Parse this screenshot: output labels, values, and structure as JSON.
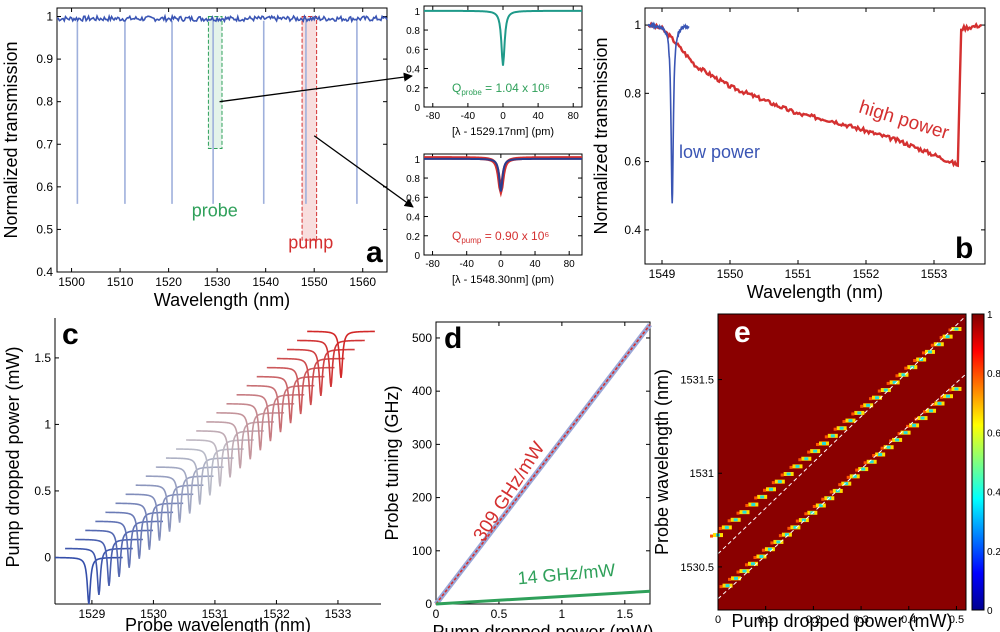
{
  "colors": {
    "blue": "#3a55b4",
    "lightblue": "#9fb0dc",
    "red": "#d43030",
    "green": "#2fa05a",
    "darkred": "#8a0000"
  },
  "chart_data": [
    {
      "panel": "a",
      "type": "line",
      "xlabel": "Wavelength (nm)",
      "ylabel": "Normalized transmission",
      "xlim": [
        1497,
        1565
      ],
      "ylim": [
        0.4,
        1.02
      ],
      "xticks": [
        1500,
        1510,
        1520,
        1530,
        1540,
        1550,
        1560
      ],
      "yticks": [
        0.4,
        0.5,
        0.6,
        0.7,
        0.8,
        0.9,
        1
      ],
      "dips_x": [
        1501.2,
        1511,
        1520.7,
        1529.17,
        1539.6,
        1548.3,
        1558.8
      ],
      "dip_min": 0.56,
      "annotations": [
        "probe",
        "pump"
      ]
    },
    {
      "panel": "a-inset-probe",
      "type": "line",
      "xlabel": "[λ - 1529.17nm] (pm)",
      "xlim": [
        -90,
        90
      ],
      "ylim": [
        0.0,
        1.05
      ],
      "xticks": [
        -80,
        -40,
        0,
        40,
        80
      ],
      "yticks": [
        0,
        0.2,
        0.4,
        0.6,
        0.8,
        1
      ],
      "dip_min": 0.43,
      "q_label": "Q",
      "q_sub": "probe",
      "q_value": " = 1.04 x 10⁶"
    },
    {
      "panel": "a-inset-pump",
      "type": "line",
      "xlabel": "[λ - 1548.30nm] (pm)",
      "xlim": [
        -90,
        95
      ],
      "ylim": [
        0.0,
        1.05
      ],
      "xticks": [
        -80,
        -40,
        0,
        40,
        80
      ],
      "yticks": [
        0,
        0.2,
        0.4,
        0.6,
        0.8,
        1
      ],
      "dip_min": 0.66,
      "q_label": "Q",
      "q_sub": "pump",
      "q_value": " = 0.90 x 10⁶"
    },
    {
      "panel": "b",
      "type": "line",
      "xlabel": "Wavelength (nm)",
      "ylabel": "Normalized transmission",
      "xlim": [
        1548.75,
        1553.75
      ],
      "ylim": [
        0.3,
        1.05
      ],
      "xticks": [
        1549,
        1550,
        1551,
        1552,
        1553
      ],
      "yticks": [
        0.4,
        0.6,
        0.8,
        1
      ],
      "series": [
        {
          "name": "low power",
          "x": [
            1548.8,
            1549.0,
            1549.08,
            1549.15,
            1549.2,
            1549.4
          ],
          "y": [
            1.0,
            1.0,
            0.75,
            0.48,
            0.99,
            1.0
          ]
        },
        {
          "name": "high power",
          "x": [
            1548.8,
            1549.0,
            1549.15,
            1549.5,
            1550.0,
            1550.5,
            1551.0,
            1551.5,
            1552.0,
            1552.5,
            1553.0,
            1553.35,
            1553.4,
            1553.7
          ],
          "y": [
            1.0,
            0.99,
            0.96,
            0.88,
            0.82,
            0.78,
            0.74,
            0.72,
            0.69,
            0.66,
            0.62,
            0.59,
            0.99,
            1.0
          ]
        }
      ]
    },
    {
      "panel": "c",
      "type": "line",
      "xlabel": "Probe wavelength (nm)",
      "ylabel": "Pump dropped power (mW)",
      "xlim": [
        1528.4,
        1533.7
      ],
      "ylim": [
        -0.35,
        1.8
      ],
      "xticks": [
        1529,
        1530,
        1531,
        1532,
        1533
      ],
      "yticks": [
        0,
        0.5,
        1,
        1.5
      ],
      "trace_count": 26,
      "dip_start": 1528.95,
      "dip_end": 1533.05,
      "power_end": 1.7
    },
    {
      "panel": "d",
      "type": "line",
      "xlabel": "Pump dropped power (mW)",
      "ylabel": "Probe tuning (GHz)",
      "xlim": [
        0,
        1.7
      ],
      "ylim": [
        0,
        530
      ],
      "xticks": [
        0,
        0.5,
        1,
        1.5
      ],
      "yticks": [
        0,
        100,
        200,
        300,
        400,
        500
      ],
      "series": [
        {
          "name": "309 GHz/mW",
          "x": [
            0,
            1.7
          ],
          "y": [
            0,
            525
          ]
        },
        {
          "name": "14 GHz/mW",
          "x": [
            0,
            1.7
          ],
          "y": [
            0,
            24
          ]
        }
      ]
    },
    {
      "panel": "e",
      "type": "heatmap",
      "xlabel": "Pump dropped power (mW)",
      "ylabel": "Probe wavelength (nm)",
      "xlim": [
        0,
        0.52
      ],
      "ylim": [
        1530.27,
        1531.85
      ],
      "xticks": [
        0,
        0.1,
        0.2,
        0.3,
        0.4,
        0.5
      ],
      "yticks": [
        1530.5,
        1531,
        1531.5
      ],
      "colorbar_ticks": [
        0,
        0.2,
        0.4,
        0.6,
        0.8,
        1
      ],
      "line1": {
        "x": [
          0,
          0.52
        ],
        "y": [
          1530.67,
          1531.8
        ]
      },
      "line2": {
        "x": [
          0.3,
          0.52
        ],
        "y": [
          1531.03,
          1531.65
        ]
      }
    }
  ],
  "labels": {
    "a": "a",
    "b": "b",
    "c": "c",
    "d": "d",
    "e": "e"
  }
}
